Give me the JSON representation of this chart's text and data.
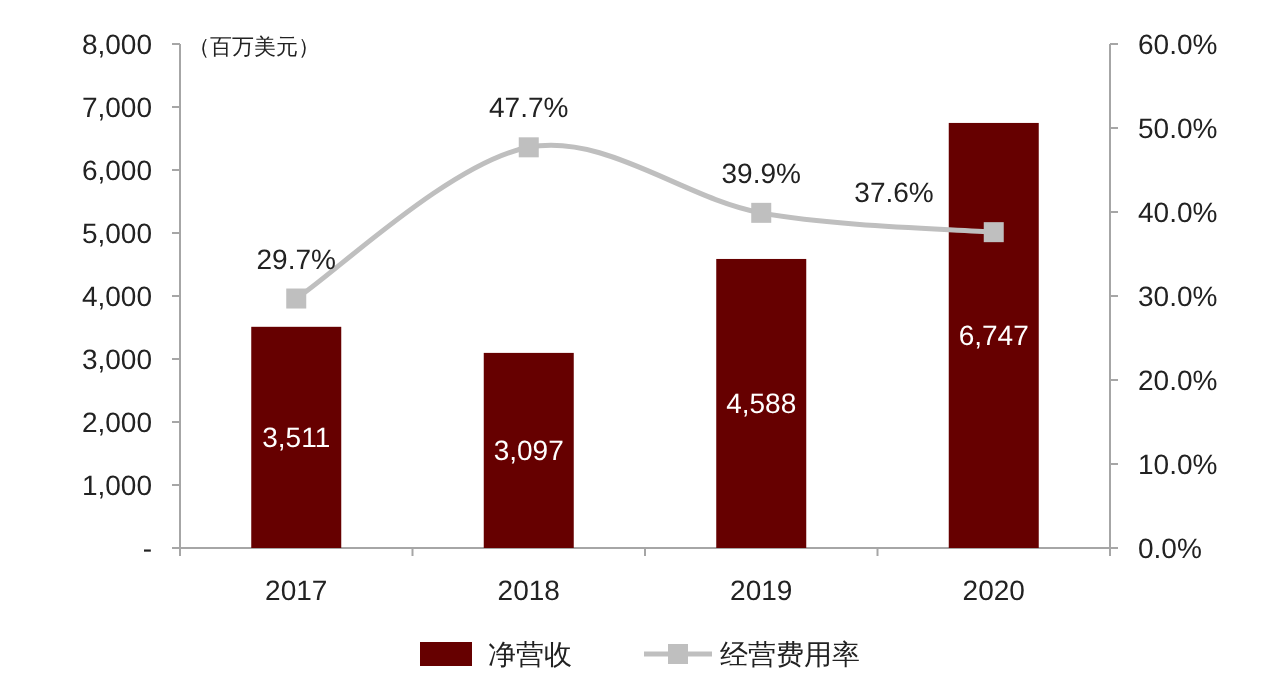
{
  "chart_data": {
    "type": "bar",
    "categories": [
      "2017",
      "2018",
      "2019",
      "2020"
    ],
    "series": [
      {
        "name": "净营收",
        "color": "#660000",
        "values": [
          3511,
          3097,
          4588,
          6747
        ],
        "value_labels": [
          "3,511",
          "3,097",
          "4,588",
          "6,747"
        ]
      },
      {
        "name": "经营费用率",
        "type": "line",
        "axis": "y2",
        "color": "#bfbfbf",
        "marker": "square",
        "values": [
          29.7,
          47.7,
          39.9,
          37.6
        ],
        "value_labels": [
          "29.7%",
          "47.7%",
          "39.9%",
          "37.6%"
        ]
      }
    ],
    "ylim": [
      0,
      8000
    ],
    "yticks": [
      {
        "value": 0,
        "label": "-"
      },
      {
        "value": 1000,
        "label": "1,000"
      },
      {
        "value": 2000,
        "label": "2,000"
      },
      {
        "value": 3000,
        "label": "3,000"
      },
      {
        "value": 4000,
        "label": "4,000"
      },
      {
        "value": 5000,
        "label": "5,000"
      },
      {
        "value": 6000,
        "label": "6,000"
      },
      {
        "value": 7000,
        "label": "7,000"
      },
      {
        "value": 8000,
        "label": "8,000"
      }
    ],
    "y2lim": [
      0,
      60
    ],
    "y2ticks": [
      {
        "value": 0,
        "label": "0.0%"
      },
      {
        "value": 10,
        "label": "10.0%"
      },
      {
        "value": 20,
        "label": "20.0%"
      },
      {
        "value": 30,
        "label": "30.0%"
      },
      {
        "value": 40,
        "label": "40.0%"
      },
      {
        "value": 50,
        "label": "50.0%"
      },
      {
        "value": 60,
        "label": "60.0%"
      }
    ],
    "annotations": [
      "（百万美元）"
    ],
    "legend": "bottom"
  }
}
